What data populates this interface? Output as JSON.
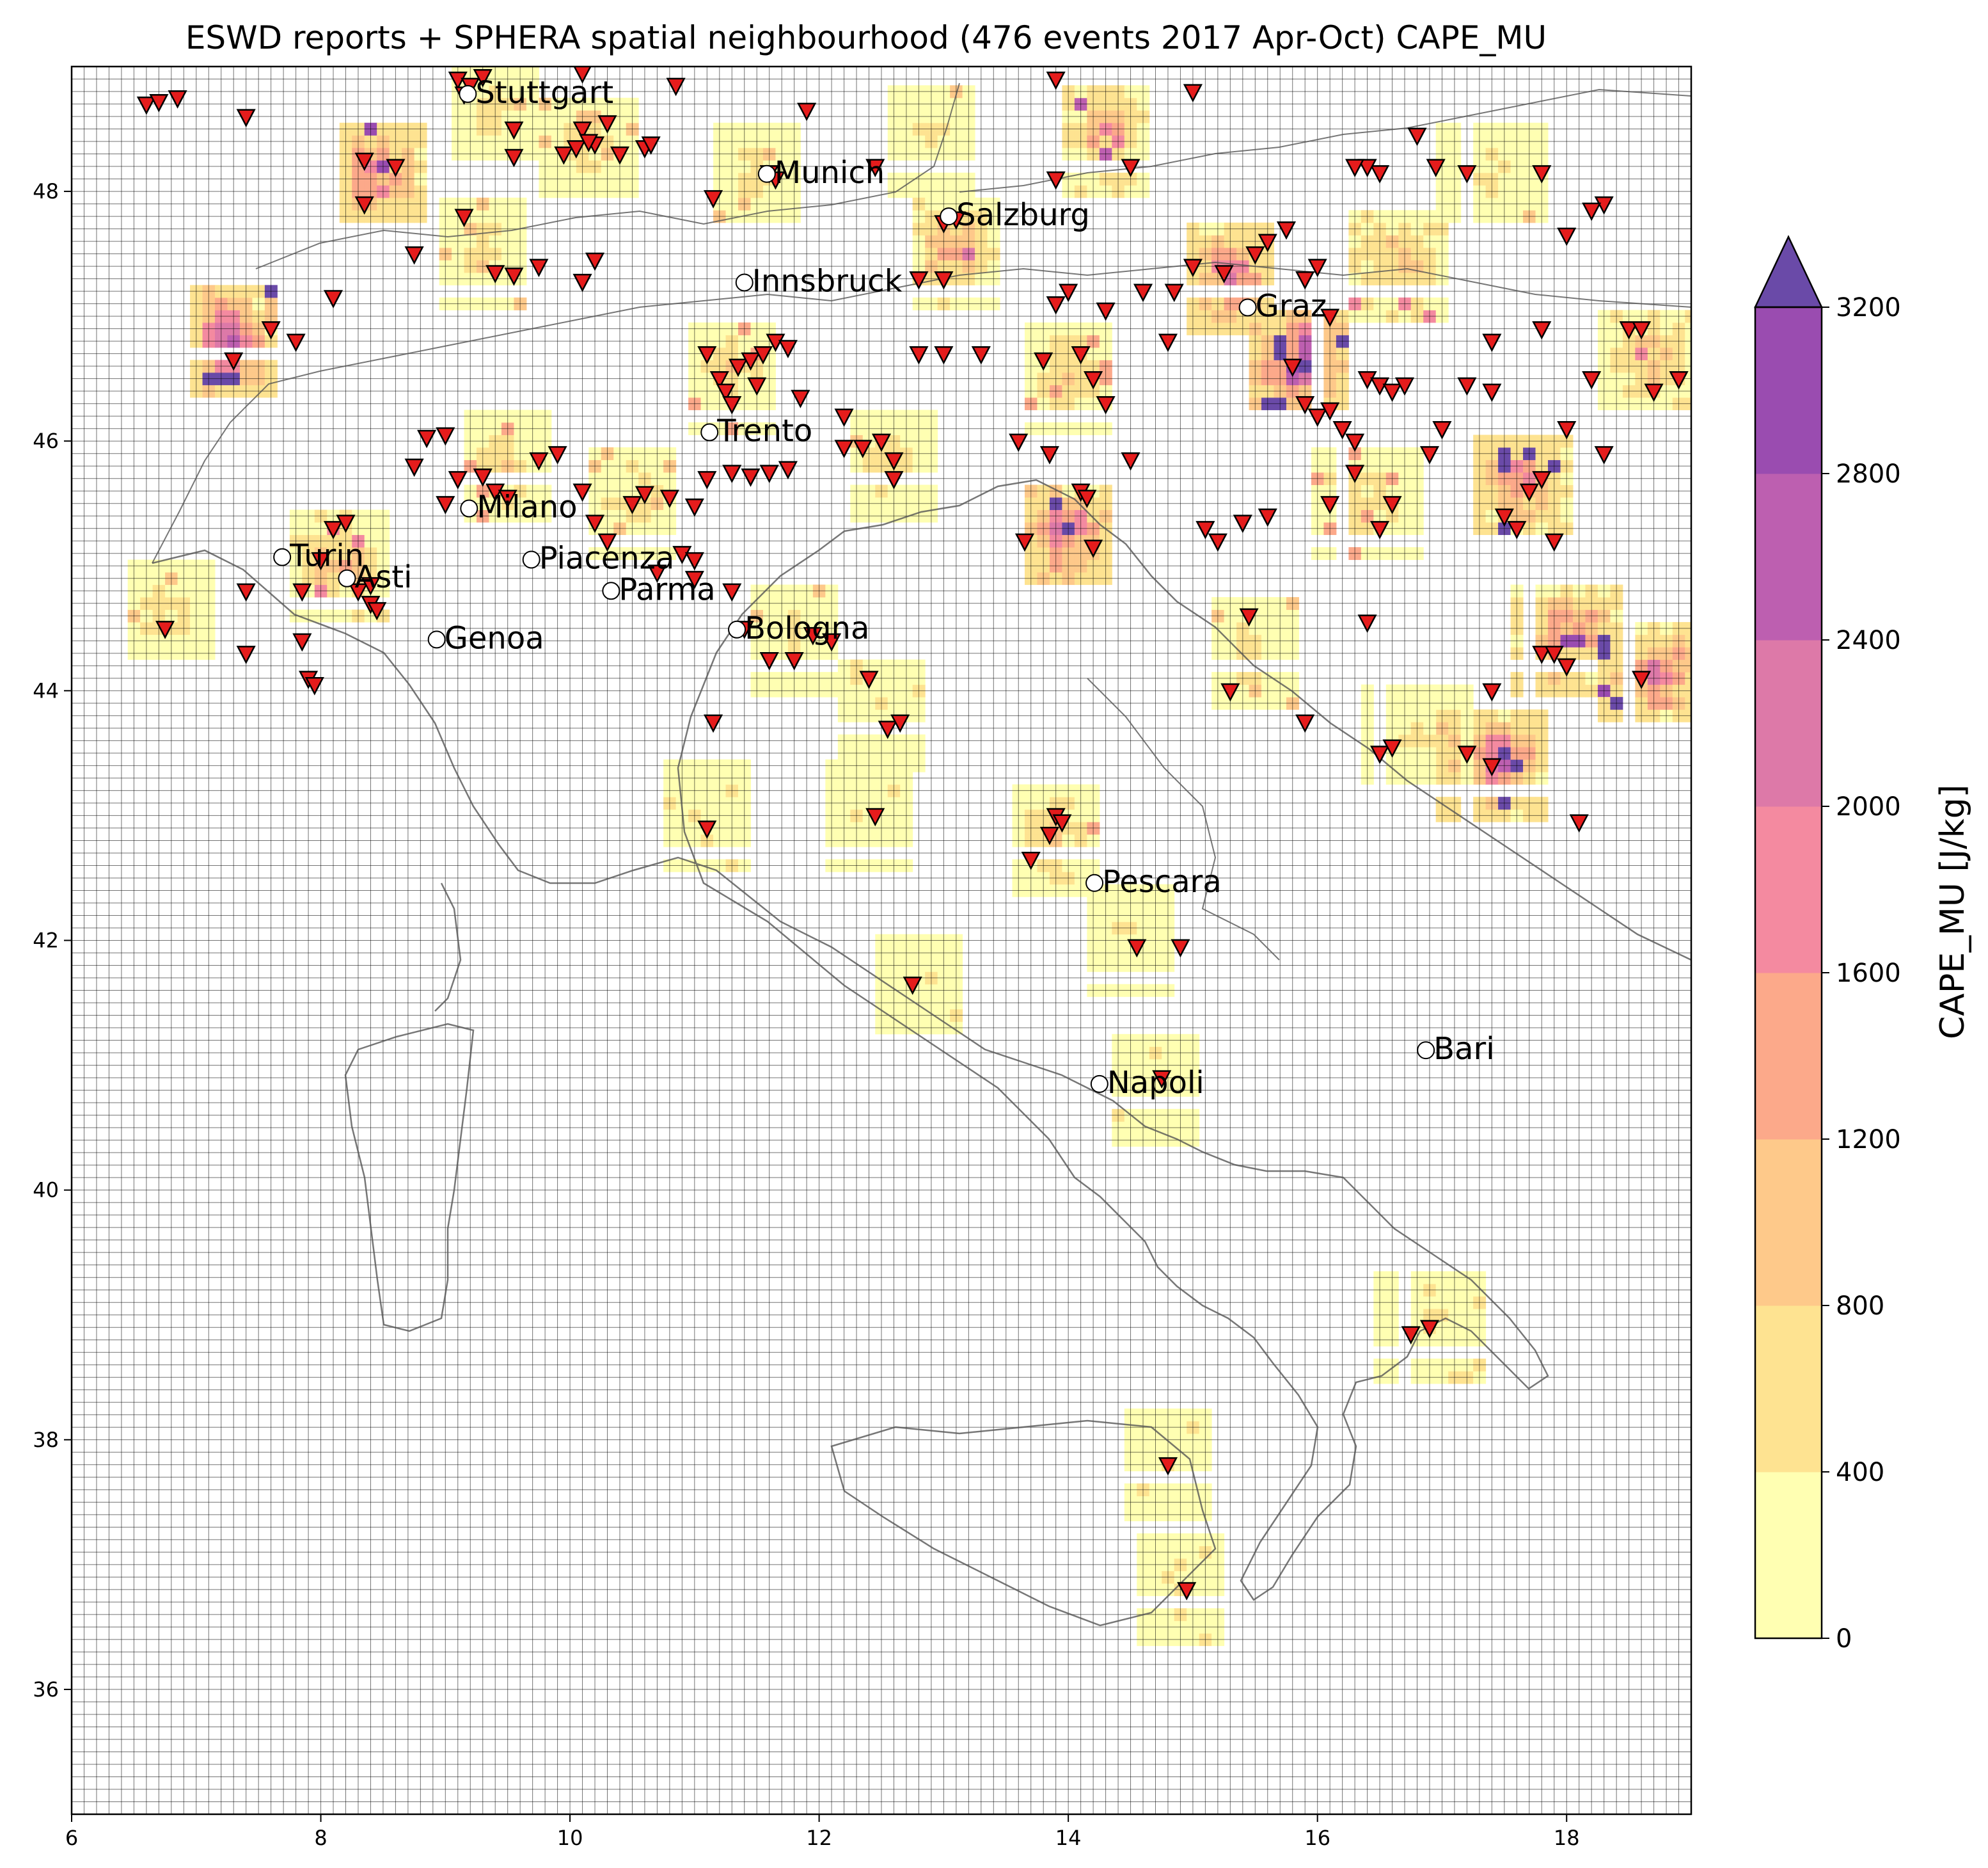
{
  "chart_data": {
    "type": "map",
    "title": "ESWD reports + SPHERA spatial neighbourhood (476 events 2017 Apr-Oct) CAPE_MU",
    "xlim": [
      6,
      19
    ],
    "ylim": [
      35,
      49
    ],
    "x_ticks": [
      "6",
      "8",
      "10",
      "12",
      "14",
      "16",
      "18"
    ],
    "y_ticks": [
      "36",
      "38",
      "40",
      "42",
      "44",
      "46",
      "48"
    ],
    "x_tick_values": [
      6,
      8,
      10,
      12,
      14,
      16,
      18
    ],
    "y_tick_values": [
      36,
      38,
      40,
      42,
      44,
      46,
      48
    ],
    "grid_step_deg": 0.1,
    "colorbar": {
      "label": "CAPE_MU  [J/kg]",
      "levels": [
        0,
        400,
        800,
        1200,
        1600,
        2000,
        2400,
        2800,
        3200
      ],
      "tick_labels": [
        "0",
        "400",
        "800",
        "1200",
        "1600",
        "2000",
        "2400",
        "2800",
        "3200"
      ],
      "colors": [
        "#ffffb2",
        "#fee391",
        "#fec98a",
        "#fca98a",
        "#f48aa0",
        "#dd79a8",
        "#bd5fb0",
        "#9a4cb0"
      ],
      "extend": "max",
      "extend_color": "#6a4aa8"
    },
    "cities": [
      {
        "name": "Stuttgart",
        "lon": 9.18,
        "lat": 48.78
      },
      {
        "name": "Munich",
        "lon": 11.58,
        "lat": 48.14
      },
      {
        "name": "Salzburg",
        "lon": 13.04,
        "lat": 47.8
      },
      {
        "name": "Innsbruck",
        "lon": 11.4,
        "lat": 47.27
      },
      {
        "name": "Graz",
        "lon": 15.44,
        "lat": 47.07
      },
      {
        "name": "Trento",
        "lon": 11.12,
        "lat": 46.07
      },
      {
        "name": "Milano",
        "lon": 9.19,
        "lat": 45.46
      },
      {
        "name": "Turin",
        "lon": 7.69,
        "lat": 45.07
      },
      {
        "name": "Asti",
        "lon": 8.21,
        "lat": 44.9
      },
      {
        "name": "Piacenza",
        "lon": 9.69,
        "lat": 45.05
      },
      {
        "name": "Parma",
        "lon": 10.33,
        "lat": 44.8
      },
      {
        "name": "Genoa",
        "lon": 8.93,
        "lat": 44.41
      },
      {
        "name": "Bologna",
        "lon": 11.34,
        "lat": 44.49
      },
      {
        "name": "Pescara",
        "lon": 14.21,
        "lat": 42.46
      },
      {
        "name": "Napoli",
        "lon": 14.25,
        "lat": 40.85
      },
      {
        "name": "Bari",
        "lon": 16.87,
        "lat": 41.12
      }
    ],
    "event_clusters": [
      {
        "lon": 9.4,
        "lat": 48.6,
        "cape": 500
      },
      {
        "lon": 10.2,
        "lat": 48.35,
        "cape": 500
      },
      {
        "lon": 8.5,
        "lat": 48.1,
        "cape": 1400
      },
      {
        "lon": 11.5,
        "lat": 48.1,
        "cape": 400
      },
      {
        "lon": 7.3,
        "lat": 46.8,
        "cape": 1800
      },
      {
        "lon": 9.3,
        "lat": 47.5,
        "cape": 500
      },
      {
        "lon": 11.3,
        "lat": 46.5,
        "cape": 600
      },
      {
        "lon": 9.5,
        "lat": 45.8,
        "cape": 600
      },
      {
        "lon": 8.2,
        "lat": 45.0,
        "cape": 900
      },
      {
        "lon": 6.8,
        "lat": 44.6,
        "cape": 500
      },
      {
        "lon": 10.5,
        "lat": 45.5,
        "cape": 500
      },
      {
        "lon": 11.8,
        "lat": 44.4,
        "cape": 400
      },
      {
        "lon": 12.6,
        "lat": 45.8,
        "cape": 500
      },
      {
        "lon": 12.5,
        "lat": 43.8,
        "cape": 300
      },
      {
        "lon": 11.1,
        "lat": 43.0,
        "cape": 300
      },
      {
        "lon": 12.4,
        "lat": 43.0,
        "cape": 300
      },
      {
        "lon": 13.9,
        "lat": 42.8,
        "cape": 700
      },
      {
        "lon": 14.5,
        "lat": 42.0,
        "cape": 300
      },
      {
        "lon": 12.8,
        "lat": 41.6,
        "cape": 300
      },
      {
        "lon": 14.7,
        "lat": 40.8,
        "cape": 300
      },
      {
        "lon": 16.9,
        "lat": 38.9,
        "cape": 300
      },
      {
        "lon": 14.8,
        "lat": 37.8,
        "cape": 300
      },
      {
        "lon": 14.9,
        "lat": 36.8,
        "cape": 300
      },
      {
        "lon": 14.0,
        "lat": 46.5,
        "cape": 700
      },
      {
        "lon": 14.0,
        "lat": 45.2,
        "cape": 1800
      },
      {
        "lon": 15.8,
        "lat": 46.6,
        "cape": 2200
      },
      {
        "lon": 15.3,
        "lat": 47.3,
        "cape": 1600
      },
      {
        "lon": 16.6,
        "lat": 47.4,
        "cape": 900
      },
      {
        "lon": 17.4,
        "lat": 43.4,
        "cape": 1700
      },
      {
        "lon": 18.0,
        "lat": 44.4,
        "cape": 1300
      },
      {
        "lon": 18.7,
        "lat": 44.1,
        "cape": 1500
      },
      {
        "lon": 17.6,
        "lat": 45.6,
        "cape": 1500
      },
      {
        "lon": 18.6,
        "lat": 46.6,
        "cape": 900
      },
      {
        "lon": 17.4,
        "lat": 48.1,
        "cape": 400
      },
      {
        "lon": 12.9,
        "lat": 48.4,
        "cape": 400
      },
      {
        "lon": 14.3,
        "lat": 48.4,
        "cape": 1100
      },
      {
        "lon": 16.4,
        "lat": 45.5,
        "cape": 600
      },
      {
        "lon": 15.5,
        "lat": 44.3,
        "cape": 500
      },
      {
        "lon": 16.8,
        "lat": 43.6,
        "cape": 400
      },
      {
        "lon": 13.1,
        "lat": 47.5,
        "cape": 1000
      }
    ],
    "reports": [
      [
        6.6,
        48.7
      ],
      [
        6.7,
        48.72
      ],
      [
        6.85,
        48.75
      ],
      [
        7.4,
        48.6
      ],
      [
        9.1,
        48.9
      ],
      [
        9.2,
        48.85
      ],
      [
        9.3,
        48.92
      ],
      [
        9.15,
        48.78
      ],
      [
        9.55,
        48.5
      ],
      [
        9.55,
        48.28
      ],
      [
        10.1,
        48.5
      ],
      [
        9.95,
        48.3
      ],
      [
        10.05,
        48.35
      ],
      [
        10.2,
        48.38
      ],
      [
        10.3,
        48.55
      ],
      [
        10.15,
        48.4
      ],
      [
        10.4,
        48.3
      ],
      [
        10.6,
        48.35
      ],
      [
        10.65,
        48.38
      ],
      [
        10.85,
        48.85
      ],
      [
        10.1,
        48.95
      ],
      [
        11.15,
        47.95
      ],
      [
        11.6,
        48.15
      ],
      [
        11.65,
        48.1
      ],
      [
        11.9,
        48.65
      ],
      [
        12.45,
        48.2
      ],
      [
        13.0,
        47.75
      ],
      [
        13.1,
        47.78
      ],
      [
        13.9,
        48.1
      ],
      [
        13.9,
        48.9
      ],
      [
        14.5,
        48.2
      ],
      [
        15.0,
        48.8
      ],
      [
        8.35,
        48.25
      ],
      [
        8.6,
        48.2
      ],
      [
        8.35,
        47.9
      ],
      [
        9.15,
        47.8
      ],
      [
        8.75,
        47.5
      ],
      [
        9.4,
        47.35
      ],
      [
        9.55,
        47.33
      ],
      [
        9.75,
        47.4
      ],
      [
        10.2,
        47.45
      ],
      [
        10.1,
        47.28
      ],
      [
        8.1,
        47.15
      ],
      [
        7.6,
        46.9
      ],
      [
        7.8,
        46.8
      ],
      [
        7.3,
        46.65
      ],
      [
        8.85,
        46.03
      ],
      [
        9.0,
        46.05
      ],
      [
        8.75,
        45.8
      ],
      [
        9.0,
        45.5
      ],
      [
        9.1,
        45.7
      ],
      [
        9.3,
        45.72
      ],
      [
        9.4,
        45.6
      ],
      [
        9.5,
        45.55
      ],
      [
        9.75,
        45.85
      ],
      [
        9.9,
        45.9
      ],
      [
        10.1,
        45.6
      ],
      [
        10.2,
        45.35
      ],
      [
        10.3,
        45.2
      ],
      [
        10.5,
        45.5
      ],
      [
        10.6,
        45.58
      ],
      [
        10.8,
        45.55
      ],
      [
        11.0,
        45.48
      ],
      [
        11.1,
        45.7
      ],
      [
        11.3,
        45.75
      ],
      [
        11.45,
        45.72
      ],
      [
        11.6,
        45.75
      ],
      [
        11.75,
        45.78
      ],
      [
        11.1,
        46.7
      ],
      [
        11.2,
        46.5
      ],
      [
        11.25,
        46.4
      ],
      [
        11.35,
        46.6
      ],
      [
        11.45,
        46.65
      ],
      [
        11.55,
        46.7
      ],
      [
        11.65,
        46.8
      ],
      [
        11.75,
        46.75
      ],
      [
        11.85,
        46.35
      ],
      [
        11.3,
        46.3
      ],
      [
        11.5,
        46.45
      ],
      [
        12.2,
        46.2
      ],
      [
        12.2,
        45.95
      ],
      [
        12.35,
        45.95
      ],
      [
        12.5,
        46.0
      ],
      [
        12.6,
        45.85
      ],
      [
        12.6,
        45.7
      ],
      [
        12.4,
        44.1
      ],
      [
        12.55,
        43.7
      ],
      [
        12.65,
        43.75
      ],
      [
        12.45,
        43.0
      ],
      [
        11.15,
        43.75
      ],
      [
        11.1,
        42.9
      ],
      [
        11.6,
        44.25
      ],
      [
        11.8,
        44.25
      ],
      [
        11.95,
        44.45
      ],
      [
        12.1,
        44.4
      ],
      [
        11.4,
        44.5
      ],
      [
        11.0,
        44.9
      ],
      [
        10.9,
        45.1
      ],
      [
        10.7,
        44.95
      ],
      [
        11.0,
        45.05
      ],
      [
        11.3,
        44.8
      ],
      [
        8.0,
        45.05
      ],
      [
        8.1,
        45.3
      ],
      [
        8.2,
        45.35
      ],
      [
        7.85,
        44.8
      ],
      [
        7.4,
        44.8
      ],
      [
        6.75,
        44.5
      ],
      [
        7.4,
        44.3
      ],
      [
        7.85,
        44.4
      ],
      [
        7.9,
        44.1
      ],
      [
        7.95,
        44.05
      ],
      [
        8.3,
        44.8
      ],
      [
        8.4,
        44.7
      ],
      [
        8.45,
        44.65
      ],
      [
        8.4,
        44.85
      ],
      [
        13.3,
        46.7
      ],
      [
        13.0,
        46.7
      ],
      [
        12.8,
        46.7
      ],
      [
        12.8,
        47.3
      ],
      [
        13.0,
        47.3
      ],
      [
        13.6,
        46.0
      ],
      [
        13.8,
        46.65
      ],
      [
        14.1,
        46.7
      ],
      [
        14.2,
        46.5
      ],
      [
        14.3,
        46.3
      ],
      [
        14.5,
        45.85
      ],
      [
        14.1,
        45.6
      ],
      [
        14.15,
        45.55
      ],
      [
        13.85,
        45.9
      ],
      [
        13.65,
        45.2
      ],
      [
        14.2,
        45.15
      ],
      [
        13.9,
        47.1
      ],
      [
        14.0,
        47.2
      ],
      [
        14.3,
        47.05
      ],
      [
        14.6,
        47.2
      ],
      [
        14.85,
        47.2
      ],
      [
        14.8,
        46.8
      ],
      [
        15.0,
        47.4
      ],
      [
        15.25,
        47.35
      ],
      [
        15.5,
        47.5
      ],
      [
        15.6,
        47.6
      ],
      [
        15.75,
        47.7
      ],
      [
        15.9,
        47.3
      ],
      [
        16.0,
        47.4
      ],
      [
        16.1,
        47.0
      ],
      [
        15.8,
        46.6
      ],
      [
        15.9,
        46.3
      ],
      [
        16.0,
        46.2
      ],
      [
        16.1,
        46.25
      ],
      [
        16.2,
        46.1
      ],
      [
        16.3,
        46.0
      ],
      [
        16.4,
        46.5
      ],
      [
        16.5,
        46.45
      ],
      [
        16.6,
        46.4
      ],
      [
        16.7,
        46.45
      ],
      [
        16.9,
        45.9
      ],
      [
        17.0,
        46.1
      ],
      [
        17.2,
        46.45
      ],
      [
        17.4,
        46.4
      ],
      [
        17.5,
        45.4
      ],
      [
        17.6,
        45.3
      ],
      [
        17.7,
        45.6
      ],
      [
        17.8,
        45.7
      ],
      [
        17.9,
        45.2
      ],
      [
        18.0,
        46.1
      ],
      [
        18.2,
        46.5
      ],
      [
        18.3,
        45.9
      ],
      [
        18.5,
        46.9
      ],
      [
        18.7,
        46.4
      ],
      [
        18.9,
        46.5
      ],
      [
        18.6,
        44.1
      ],
      [
        17.8,
        44.3
      ],
      [
        17.9,
        44.3
      ],
      [
        18.0,
        44.2
      ],
      [
        17.4,
        44.0
      ],
      [
        17.2,
        43.5
      ],
      [
        17.4,
        43.4
      ],
      [
        18.1,
        42.95
      ],
      [
        15.3,
        44.0
      ],
      [
        15.45,
        44.6
      ],
      [
        15.9,
        43.75
      ],
      [
        16.4,
        44.55
      ],
      [
        16.5,
        43.5
      ],
      [
        16.6,
        43.55
      ],
      [
        15.1,
        45.3
      ],
      [
        15.2,
        45.2
      ],
      [
        15.4,
        45.35
      ],
      [
        15.6,
        45.4
      ],
      [
        16.5,
        45.3
      ],
      [
        16.6,
        45.5
      ],
      [
        16.3,
        45.75
      ],
      [
        16.1,
        45.5
      ],
      [
        16.8,
        48.45
      ],
      [
        16.95,
        48.2
      ],
      [
        16.5,
        48.15
      ],
      [
        16.4,
        48.2
      ],
      [
        16.3,
        48.2
      ],
      [
        17.2,
        48.15
      ],
      [
        17.8,
        48.15
      ],
      [
        18.3,
        47.9
      ],
      [
        18.2,
        47.85
      ],
      [
        18.0,
        47.65
      ],
      [
        17.8,
        46.9
      ],
      [
        17.4,
        46.8
      ],
      [
        18.6,
        46.9
      ],
      [
        18.9,
        46.5
      ],
      [
        14.9,
        41.95
      ],
      [
        14.55,
        41.95
      ],
      [
        12.75,
        41.65
      ],
      [
        13.9,
        43.0
      ],
      [
        13.85,
        42.85
      ],
      [
        13.7,
        42.65
      ],
      [
        14.8,
        37.8
      ],
      [
        14.95,
        36.8
      ],
      [
        16.75,
        38.85
      ],
      [
        16.9,
        38.9
      ],
      [
        14.75,
        40.9
      ],
      [
        13.95,
        42.95
      ]
    ]
  }
}
